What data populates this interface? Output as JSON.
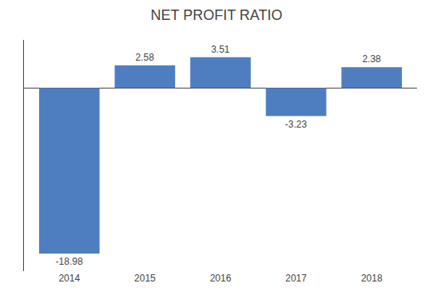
{
  "chart_data": {
    "type": "bar",
    "title": "NET PROFIT RATIO",
    "categories": [
      "2014",
      "2015",
      "2016",
      "2017",
      "2018"
    ],
    "values": [
      -18.98,
      2.58,
      3.51,
      -3.23,
      2.38
    ],
    "color": "#4F7EC0",
    "ylim": [
      -21,
      5.5
    ],
    "grid": false,
    "data_labels": true,
    "tick_labels": "x"
  }
}
